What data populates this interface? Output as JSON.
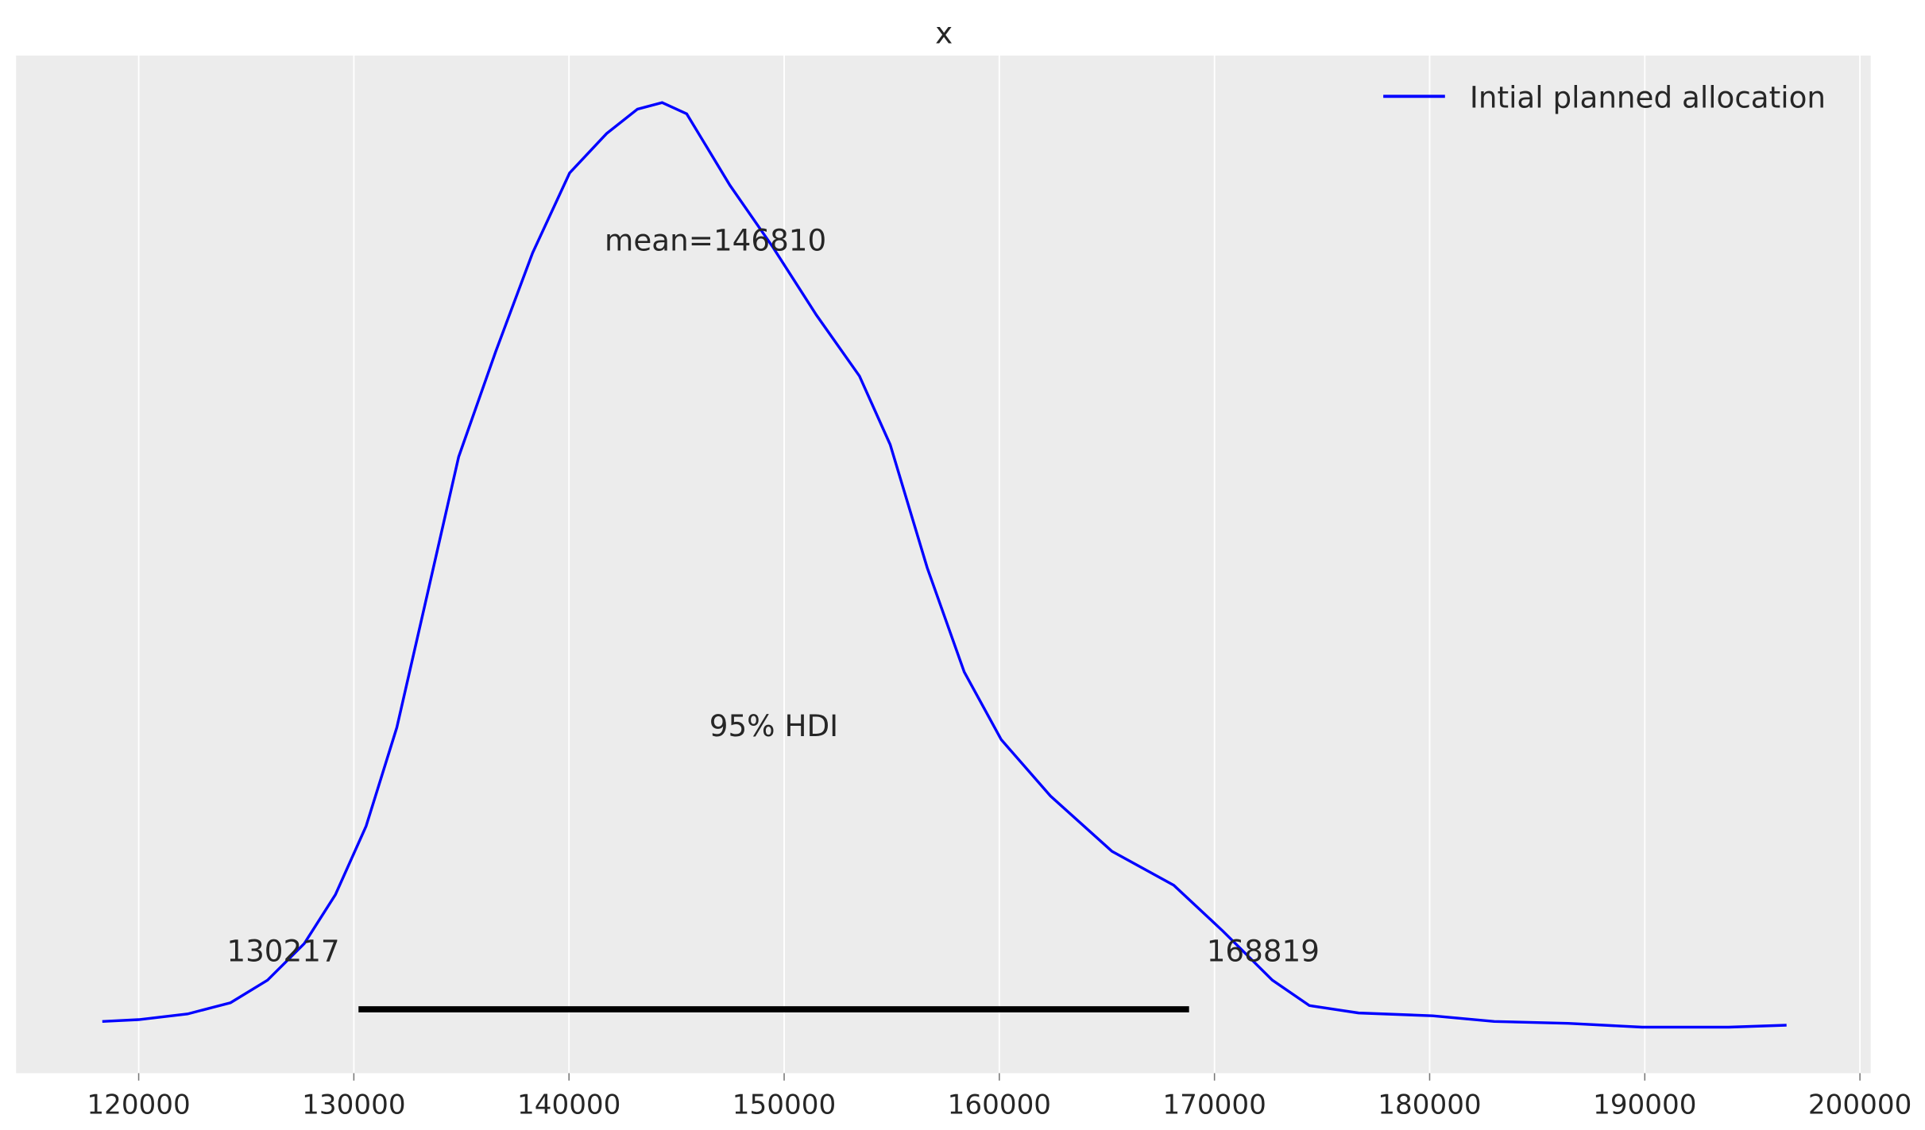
{
  "chart_data": {
    "type": "line",
    "title": "x",
    "xlabel": "",
    "ylabel": "",
    "xlim": [
      114300,
      200500
    ],
    "ylim": [
      -0.033,
      1.05
    ],
    "grid": true,
    "xticks": [
      120000,
      130000,
      140000,
      150000,
      160000,
      170000,
      180000,
      190000,
      200000
    ],
    "xtick_labels": [
      "120000",
      "130000",
      "140000",
      "150000",
      "160000",
      "170000",
      "180000",
      "190000",
      "200000"
    ],
    "legend_position": "top-right",
    "background_color": "#ececec",
    "series": [
      {
        "name": "Intial planned allocation",
        "color": "#0000ff",
        "points": [
          [
            118310,
            0.022
          ],
          [
            120000,
            0.024
          ],
          [
            122270,
            0.03
          ],
          [
            124270,
            0.042
          ],
          [
            125990,
            0.066
          ],
          [
            127700,
            0.105
          ],
          [
            129140,
            0.157
          ],
          [
            130570,
            0.23
          ],
          [
            132000,
            0.335
          ],
          [
            133440,
            0.479
          ],
          [
            134870,
            0.623
          ],
          [
            136590,
            0.735
          ],
          [
            138310,
            0.84
          ],
          [
            140030,
            0.925
          ],
          [
            141750,
            0.967
          ],
          [
            143180,
            0.993
          ],
          [
            144330,
            1.0
          ],
          [
            145470,
            0.988
          ],
          [
            147480,
            0.912
          ],
          [
            149480,
            0.846
          ],
          [
            151490,
            0.774
          ],
          [
            153500,
            0.709
          ],
          [
            154930,
            0.636
          ],
          [
            156650,
            0.505
          ],
          [
            158370,
            0.394
          ],
          [
            160090,
            0.322
          ],
          [
            162380,
            0.262
          ],
          [
            165240,
            0.203
          ],
          [
            168110,
            0.167
          ],
          [
            170400,
            0.118
          ],
          [
            172690,
            0.066
          ],
          [
            174410,
            0.039
          ],
          [
            176700,
            0.031
          ],
          [
            180140,
            0.028
          ],
          [
            183000,
            0.022
          ],
          [
            186440,
            0.02
          ],
          [
            189880,
            0.016
          ],
          [
            193900,
            0.016
          ],
          [
            196590,
            0.018
          ]
        ]
      }
    ],
    "hdi": {
      "low": 130217,
      "high": 168819,
      "level": 0.035,
      "color": "#000000",
      "low_label": "130217",
      "high_label": "168819",
      "label": "95% HDI",
      "label_level": 0.336
    },
    "mean": {
      "value": 146810,
      "label": "mean=146810",
      "label_level": 0.853
    }
  }
}
